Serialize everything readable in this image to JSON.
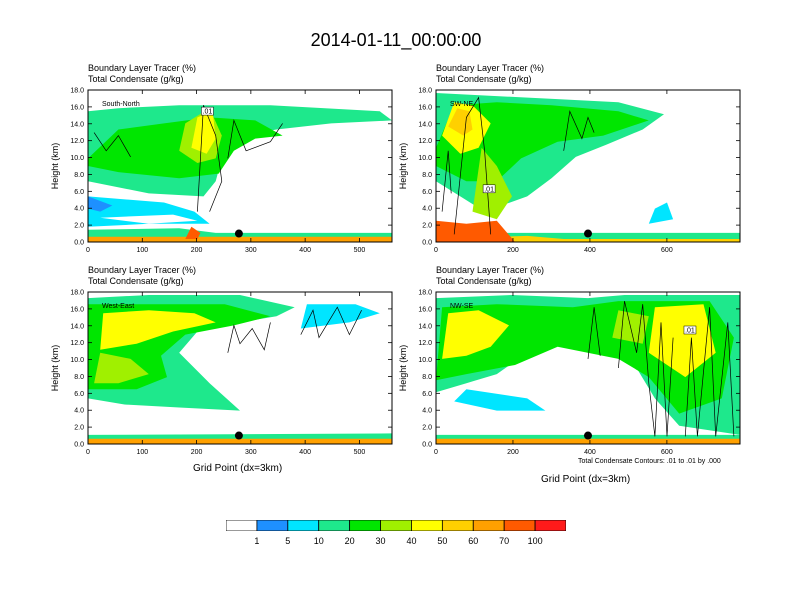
{
  "title": "2014-01-11_00:00:00",
  "panel_titles": [
    "Boundary Layer Tracer   (%)",
    "Total Condensate   (g/kg)"
  ],
  "xlabel": "Grid Point (dx=3km)",
  "ylabel": "Height (km)",
  "footnote": "Total Condensate Contours: .01 to .01 by .000",
  "colors": {
    "levels": [
      "#ffffff",
      "#1e90ff",
      "#00e5ff",
      "#1ee88c",
      "#00e600",
      "#a0f000",
      "#ffff00",
      "#ffd000",
      "#ffa000",
      "#ff5a00",
      "#ff1a1a"
    ],
    "contour": "#000000",
    "marker": "#000000"
  },
  "legend": {
    "labels": [
      "1",
      "5",
      "10",
      "20",
      "30",
      "40",
      "50",
      "60",
      "70",
      "100"
    ]
  },
  "chart_data": [
    {
      "type": "heatmap",
      "panel_label": "South-North",
      "xlim": [
        0,
        560
      ],
      "ylim": [
        0,
        18
      ],
      "xticks": [
        "0",
        "100",
        "200",
        "300",
        "400",
        "500"
      ],
      "yticks": [
        "0.0",
        "2.0",
        "4.0",
        "6.0",
        "8.0",
        "10.0",
        "12.0",
        "14.0",
        "16.0",
        "18.0"
      ],
      "marker": {
        "x": 278,
        "y": 1.0
      },
      "contour_label": ".01",
      "contour_label_pos": {
        "x": 220,
        "y": 15.5
      }
    },
    {
      "type": "heatmap",
      "panel_label": "SW-NE",
      "xlim": [
        0,
        790
      ],
      "ylim": [
        0,
        18
      ],
      "xticks": [
        "0",
        "200",
        "400",
        "600"
      ],
      "yticks": [
        "0.0",
        "2.0",
        "4.0",
        "6.0",
        "8.0",
        "10.0",
        "12.0",
        "14.0",
        "16.0",
        "18.0"
      ],
      "marker": {
        "x": 395,
        "y": 1.0
      },
      "contour_label": ".01",
      "contour_label_pos": {
        "x": 138,
        "y": 6.3
      }
    },
    {
      "type": "heatmap",
      "panel_label": "West-East",
      "xlim": [
        0,
        560
      ],
      "ylim": [
        0,
        18
      ],
      "xticks": [
        "0",
        "100",
        "200",
        "300",
        "400",
        "500"
      ],
      "yticks": [
        "0.0",
        "2.0",
        "4.0",
        "6.0",
        "8.0",
        "10.0",
        "12.0",
        "14.0",
        "16.0",
        "18.0"
      ],
      "marker": {
        "x": 278,
        "y": 1.0
      },
      "contour_label": "",
      "contour_label_pos": {
        "x": 0,
        "y": 0
      }
    },
    {
      "type": "heatmap",
      "panel_label": "NW-SE",
      "xlim": [
        0,
        790
      ],
      "ylim": [
        0,
        18
      ],
      "xticks": [
        "0",
        "200",
        "400",
        "600"
      ],
      "yticks": [
        "0.0",
        "2.0",
        "4.0",
        "6.0",
        "8.0",
        "10.0",
        "12.0",
        "14.0",
        "16.0",
        "18.0"
      ],
      "marker": {
        "x": 395,
        "y": 1.0
      },
      "contour_label": ".01",
      "contour_label_pos": {
        "x": 660,
        "y": 13.5
      }
    }
  ]
}
